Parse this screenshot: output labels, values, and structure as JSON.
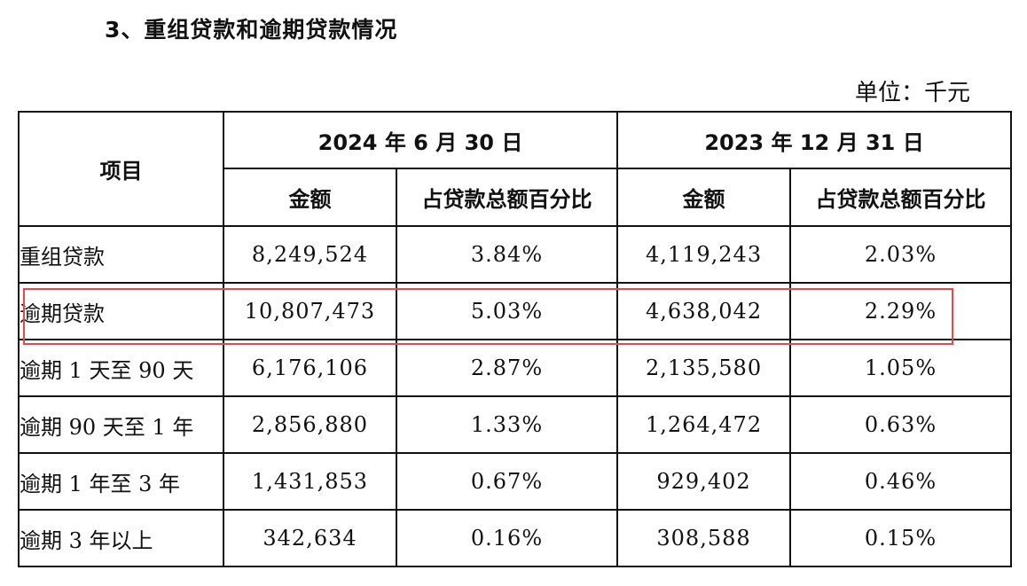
{
  "section_title": "3、重组贷款和逾期贷款情况",
  "unit_note": "单位：千元",
  "highlight_color": "#e8484c",
  "table": {
    "item_header": "项目",
    "period_headers": [
      "2024 年 6 月 30 日",
      "2023 年 12 月 31 日"
    ],
    "sub_headers": [
      "金额",
      "占贷款总额百分比",
      "金额",
      "占贷款总额百分比"
    ],
    "rows": [
      {
        "item": "重组贷款",
        "amount_2024": "8,249,524",
        "pct_2024": "3.84%",
        "amount_2023": "4,119,243",
        "pct_2023": "2.03%"
      },
      {
        "item": "逾期贷款",
        "amount_2024": "10,807,473",
        "pct_2024": "5.03%",
        "amount_2023": "4,638,042",
        "pct_2023": "2.29%"
      },
      {
        "item": "逾期 1 天至 90 天",
        "amount_2024": "6,176,106",
        "pct_2024": "2.87%",
        "amount_2023": "2,135,580",
        "pct_2023": "1.05%"
      },
      {
        "item": "逾期 90 天至 1 年",
        "amount_2024": "2,856,880",
        "pct_2024": "1.33%",
        "amount_2023": "1,264,472",
        "pct_2023": "0.63%"
      },
      {
        "item": "逾期 1 年至 3 年",
        "amount_2024": "1,431,853",
        "pct_2024": "0.67%",
        "amount_2023": "929,402",
        "pct_2023": "0.46%"
      },
      {
        "item": "逾期 3 年以上",
        "amount_2024": "342,634",
        "pct_2024": "0.16%",
        "amount_2023": "308,588",
        "pct_2023": "0.15%"
      }
    ]
  }
}
